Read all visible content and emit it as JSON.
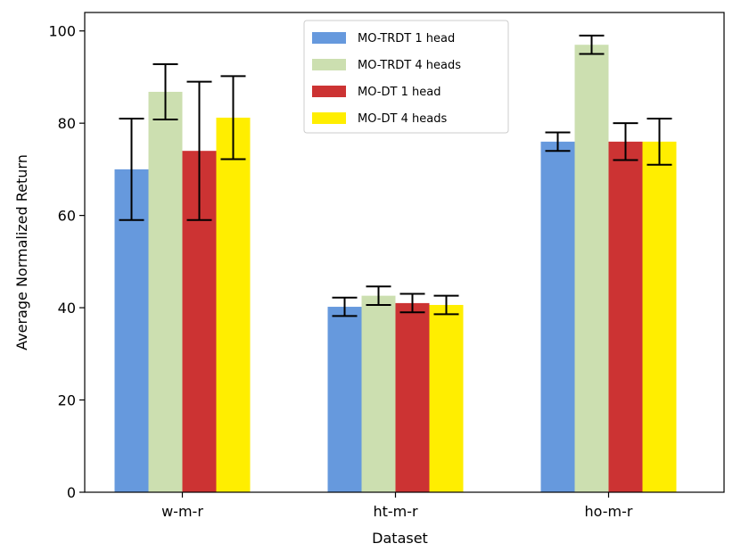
{
  "chart_data": {
    "type": "bar",
    "title": "",
    "xlabel": "Dataset",
    "ylabel": "Average Normalized Return",
    "categories": [
      "w-m-r",
      "ht-m-r",
      "ho-m-r"
    ],
    "ylim": [
      0,
      104
    ],
    "yticks": [
      0,
      20,
      40,
      60,
      80,
      100
    ],
    "legend_position": "top-center",
    "series": [
      {
        "name": "MO-TRDT 1 head",
        "color": "#6699dd",
        "values": [
          70,
          40.2,
          76
        ],
        "errors": [
          11,
          2,
          2
        ]
      },
      {
        "name": "MO-TRDT 4 heads",
        "color": "#ccdfb0",
        "values": [
          86.8,
          42.6,
          97
        ],
        "errors": [
          6,
          2,
          2
        ]
      },
      {
        "name": "MO-DT 1 head",
        "color": "#cc3333",
        "values": [
          74,
          41,
          76
        ],
        "errors": [
          15,
          2,
          4
        ]
      },
      {
        "name": "MO-DT 4 heads",
        "color": "#ffee00",
        "values": [
          81.2,
          40.6,
          76
        ],
        "errors": [
          9,
          2,
          5
        ]
      }
    ]
  }
}
